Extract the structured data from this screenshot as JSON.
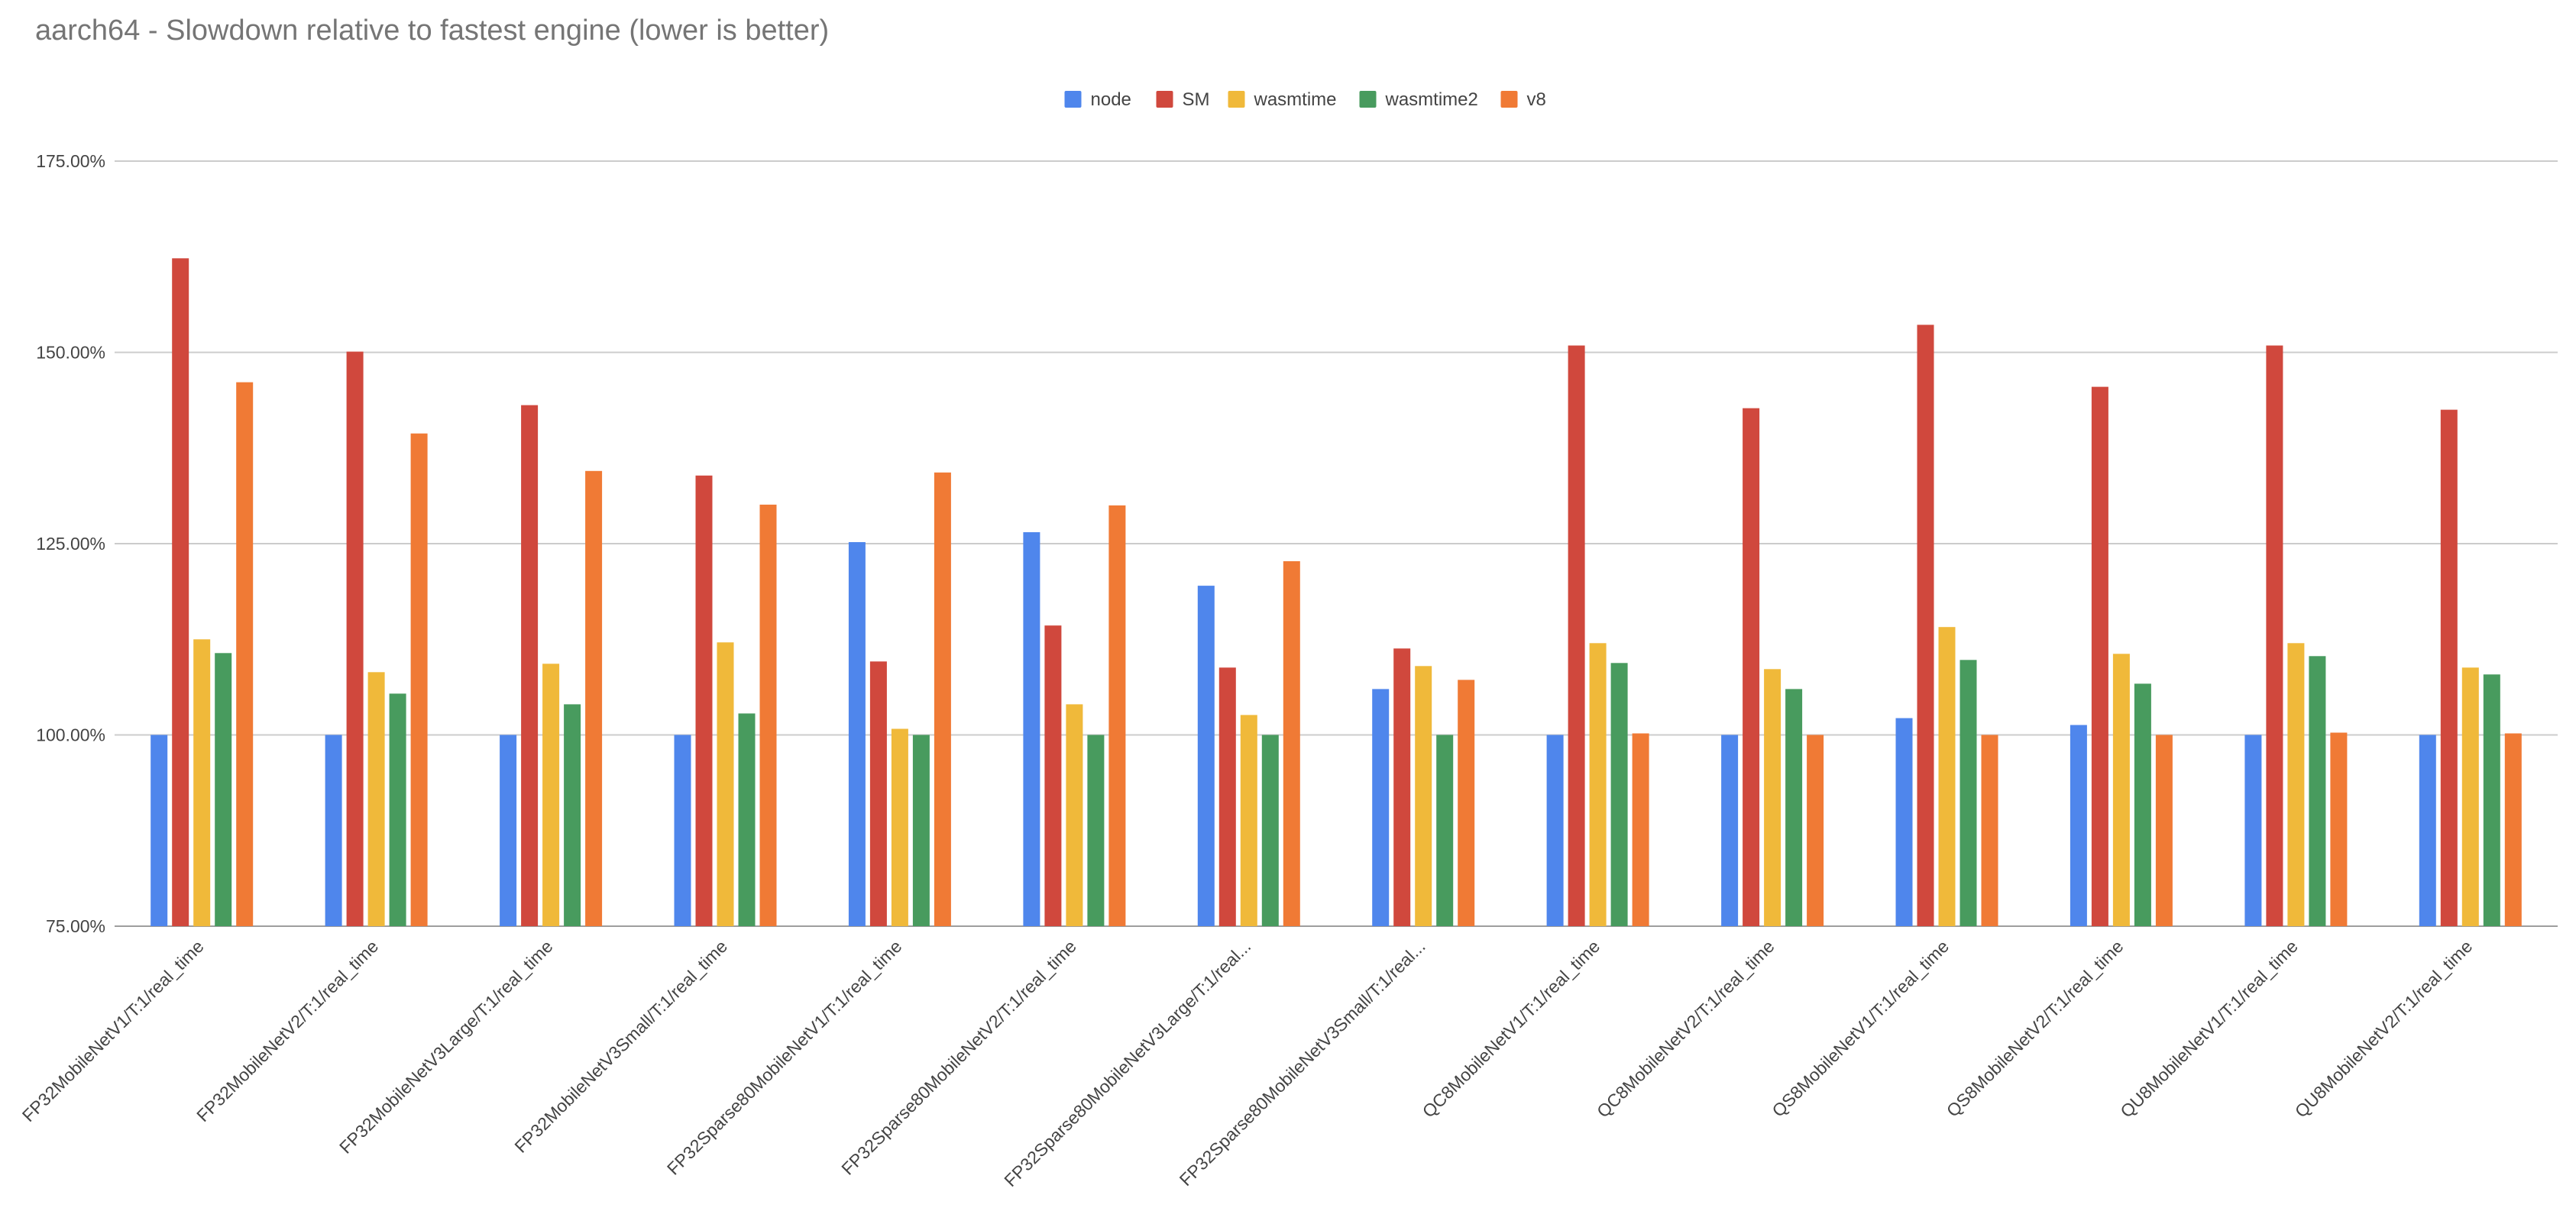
{
  "chart_data": {
    "type": "bar",
    "title": "aarch64 - Slowdown relative to fastest engine (lower is better)",
    "xlabel": "",
    "ylabel": "",
    "ylim": [
      75,
      175
    ],
    "y_ticks": [
      "175.00%",
      "150.00%",
      "125.00%",
      "100.00%",
      "75.00%"
    ],
    "y_tick_values": [
      175,
      150,
      125,
      100,
      75
    ],
    "grid": true,
    "legend_position": "top-center",
    "categories": [
      "FP32MobileNetV1/T:1/real_time",
      "FP32MobileNetV2/T:1/real_time",
      "FP32MobileNetV3Large/T:1/real_time",
      "FP32MobileNetV3Small/T:1/real_time",
      "FP32Sparse80MobileNetV1/T:1/real_time",
      "FP32Sparse80MobileNetV2/T:1/real_time",
      "FP32Sparse80MobileNetV3Large/T:1/real...",
      "FP32Sparse80MobileNetV3Small/T:1/real...",
      "QC8MobileNetV1/T:1/real_time",
      "QC8MobileNetV2/T:1/real_time",
      "QS8MobileNetV1/T:1/real_time",
      "QS8MobileNetV2/T:1/real_time",
      "QU8MobileNetV1/T:1/real_time",
      "QU8MobileNetV2/T:1/real_time"
    ],
    "series": [
      {
        "name": "node",
        "color": "#4f86ec",
        "values": [
          100,
          100,
          100,
          100,
          125.2,
          126.5,
          119.5,
          106,
          100,
          100,
          102.2,
          101.3,
          100,
          100
        ]
      },
      {
        "name": "SM",
        "color": "#d0483d",
        "values": [
          162.3,
          150.1,
          143.1,
          133.9,
          109.6,
          114.3,
          108.8,
          111.3,
          150.9,
          142.7,
          153.6,
          145.5,
          150.9,
          142.5
        ]
      },
      {
        "name": "wasmtime",
        "color": "#f0b93a",
        "values": [
          112.5,
          108.2,
          109.3,
          112.1,
          100.8,
          104,
          102.6,
          109,
          112,
          108.6,
          114.1,
          110.6,
          112,
          108.8
        ]
      },
      {
        "name": "wasmtime2",
        "color": "#489b5e",
        "values": [
          110.7,
          105.4,
          104,
          102.8,
          100,
          100,
          100,
          100,
          109.4,
          106,
          109.8,
          106.7,
          110.3,
          107.9
        ]
      },
      {
        "name": "v8",
        "color": "#f07a35",
        "values": [
          146.1,
          139.4,
          134.5,
          130.1,
          134.3,
          130,
          122.7,
          107.2,
          100.2,
          100,
          100,
          100,
          100.3,
          100.2
        ]
      }
    ]
  }
}
